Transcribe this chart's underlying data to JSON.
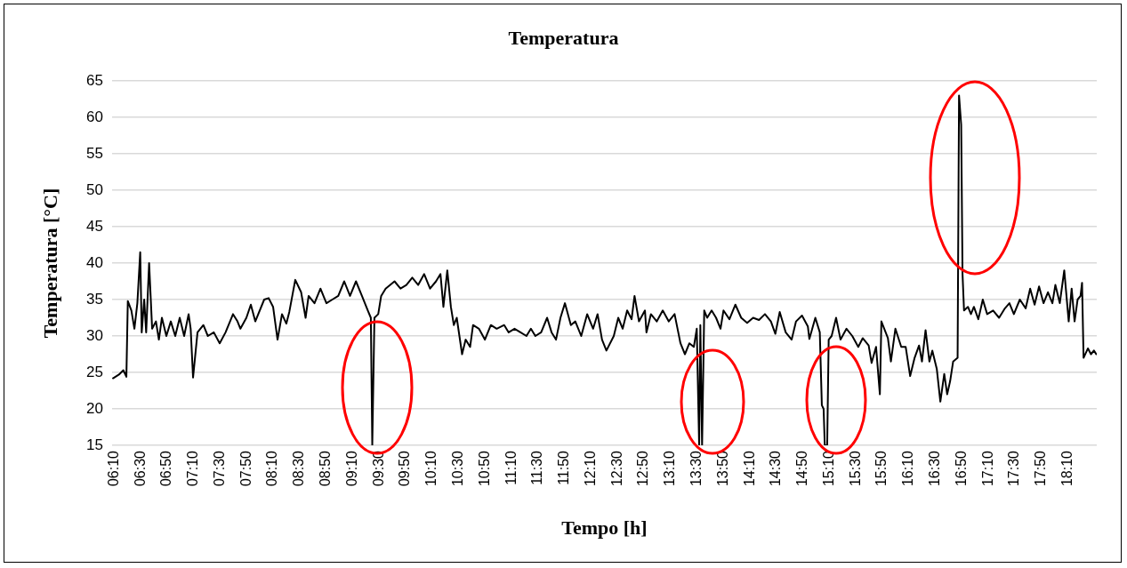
{
  "chart_data": {
    "type": "line",
    "title": "Temperatura",
    "xlabel": "Tempo [h]",
    "ylabel": "Temperatura [°C]",
    "x": [
      6.152,
      6.226,
      6.282,
      6.32,
      6.338,
      6.383,
      6.421,
      6.458,
      6.494,
      6.513,
      6.544,
      6.569,
      6.606,
      6.644,
      6.692,
      6.729,
      6.767,
      6.823,
      6.879,
      6.935,
      6.991,
      7.047,
      7.103,
      7.129,
      7.159,
      7.215,
      7.289,
      7.345,
      7.42,
      7.494,
      7.568,
      7.662,
      7.718,
      7.755,
      7.83,
      7.886,
      7.942,
      8.054,
      8.11,
      8.166,
      8.222,
      8.278,
      8.333,
      8.37,
      8.445,
      8.519,
      8.575,
      8.613,
      8.687,
      8.762,
      8.837,
      8.911,
      8.986,
      9.061,
      9.134,
      9.209,
      9.284,
      9.358,
      9.396,
      9.414,
      9.441,
      9.489,
      9.526,
      9.582,
      9.694,
      9.769,
      9.843,
      9.917,
      9.992,
      10.067,
      10.141,
      10.216,
      10.272,
      10.309,
      10.358,
      10.403,
      10.44,
      10.477,
      10.544,
      10.589,
      10.645,
      10.682,
      10.756,
      10.831,
      10.906,
      10.98,
      11.074,
      11.13,
      11.204,
      11.279,
      11.354,
      11.41,
      11.466,
      11.539,
      11.614,
      11.67,
      11.726,
      11.782,
      11.838,
      11.913,
      11.969,
      12.043,
      12.118,
      12.193,
      12.249,
      12.305,
      12.36,
      12.453,
      12.509,
      12.565,
      12.621,
      12.677,
      12.714,
      12.77,
      12.845,
      12.864,
      12.92,
      12.994,
      13.069,
      13.144,
      13.218,
      13.292,
      13.348,
      13.404,
      13.46,
      13.497,
      13.527,
      13.542,
      13.564,
      13.591,
      13.628,
      13.684,
      13.74,
      13.796,
      13.833,
      13.908,
      13.983,
      14.056,
      14.131,
      14.206,
      14.28,
      14.355,
      14.43,
      14.486,
      14.541,
      14.616,
      14.691,
      14.746,
      14.821,
      14.895,
      14.914,
      14.989,
      15.045,
      15.071,
      15.093,
      15.108,
      15.138,
      15.157,
      15.194,
      15.25,
      15.306,
      15.381,
      15.454,
      15.529,
      15.585,
      15.66,
      15.697,
      15.753,
      15.801,
      15.82,
      15.902,
      15.94,
      15.996,
      16.07,
      16.126,
      16.182,
      16.238,
      16.294,
      16.331,
      16.376,
      16.424,
      16.461,
      16.517,
      16.562,
      16.611,
      16.648,
      16.685,
      16.723,
      16.779,
      16.797,
      16.824,
      16.841,
      16.86,
      16.909,
      16.947,
      16.984,
      17.04,
      17.096,
      17.151,
      17.226,
      17.301,
      17.375,
      17.431,
      17.487,
      17.562,
      17.636,
      17.692,
      17.748,
      17.804,
      17.86,
      17.916,
      17.972,
      18.009,
      18.065,
      18.121,
      18.177,
      18.214,
      18.251,
      18.289,
      18.326,
      18.345,
      18.364,
      18.419,
      18.457,
      18.494,
      18.524
    ],
    "series": [
      {
        "color": "#000000",
        "values": [
          24.2,
          24.7,
          25.3,
          24.4,
          34.8,
          33.5,
          31,
          34.5,
          41.5,
          30.5,
          35,
          30.5,
          40,
          31,
          32,
          29.5,
          32.5,
          30,
          32,
          30,
          32.5,
          30,
          33,
          31,
          24.3,
          30.5,
          31.5,
          30,
          30.5,
          29,
          30.5,
          33,
          32,
          31,
          32.5,
          34.3,
          32,
          35,
          35.2,
          34,
          29.5,
          33,
          31.7,
          33.3,
          37.7,
          36,
          32.5,
          35.5,
          34.5,
          36.5,
          34.5,
          35,
          35.5,
          37.5,
          35.5,
          37.5,
          35.5,
          33.5,
          32.5,
          15,
          32.5,
          33,
          35.5,
          36.5,
          37.5,
          36.5,
          37,
          38,
          37,
          38.5,
          36.5,
          37.5,
          38.5,
          34,
          39,
          34,
          31.5,
          32.5,
          27.5,
          29.5,
          28.5,
          31.5,
          31,
          29.5,
          31.5,
          31,
          31.5,
          30.5,
          31,
          30.5,
          30,
          31,
          30,
          30.5,
          32.5,
          30.5,
          29.5,
          32.5,
          34.5,
          31.5,
          32,
          30,
          33,
          31,
          33,
          29.5,
          28,
          30,
          32.5,
          31,
          33.5,
          32.3,
          35.5,
          32,
          33.5,
          30.5,
          33,
          32,
          33.5,
          32,
          33,
          29,
          27.5,
          29,
          28.5,
          31,
          15,
          31.5,
          15,
          33.5,
          32.5,
          33.5,
          32.5,
          31,
          33.5,
          32.3,
          34.3,
          32.5,
          31.8,
          32.5,
          32.2,
          33,
          32,
          30.3,
          33.3,
          30.5,
          29.5,
          32,
          32.8,
          31.3,
          29.6,
          32.5,
          30.5,
          20.5,
          20,
          15,
          15,
          29.5,
          30,
          32.5,
          29.5,
          31,
          30,
          28.5,
          29.7,
          28.7,
          26.3,
          28.5,
          22,
          32,
          29.7,
          26.5,
          31,
          28.5,
          28.5,
          24.5,
          27,
          28.7,
          26.5,
          30.8,
          26.5,
          28,
          25.5,
          21,
          24.8,
          22,
          23.8,
          26.5,
          27,
          63,
          59,
          38.5,
          33.5,
          34,
          33,
          34,
          32.3,
          35,
          33,
          33.5,
          32.5,
          33.8,
          34.5,
          33,
          35,
          33.8,
          36.5,
          34.3,
          36.8,
          34.5,
          36,
          34.5,
          37,
          34.5,
          39,
          32,
          36.5,
          32,
          35,
          35.5,
          37.3,
          27,
          28.3,
          27.5,
          28,
          27.5
        ]
      }
    ],
    "xlim": [
      6.14,
      18.53
    ],
    "ylim": [
      15,
      65
    ],
    "xticks": [
      {
        "value": 6.1667,
        "label": "06:10"
      },
      {
        "value": 6.5,
        "label": "06:30"
      },
      {
        "value": 6.8333,
        "label": "06:50"
      },
      {
        "value": 7.1667,
        "label": "07:10"
      },
      {
        "value": 7.5,
        "label": "07:30"
      },
      {
        "value": 7.8333,
        "label": "07:50"
      },
      {
        "value": 8.1667,
        "label": "08:10"
      },
      {
        "value": 8.5,
        "label": "08:30"
      },
      {
        "value": 8.8333,
        "label": "08:50"
      },
      {
        "value": 9.1667,
        "label": "09:10"
      },
      {
        "value": 9.5,
        "label": "09:30"
      },
      {
        "value": 9.8333,
        "label": "09:50"
      },
      {
        "value": 10.1667,
        "label": "10:10"
      },
      {
        "value": 10.5,
        "label": "10:30"
      },
      {
        "value": 10.8333,
        "label": "10:50"
      },
      {
        "value": 11.1667,
        "label": "11:10"
      },
      {
        "value": 11.5,
        "label": "11:30"
      },
      {
        "value": 11.8333,
        "label": "11:50"
      },
      {
        "value": 12.1667,
        "label": "12:10"
      },
      {
        "value": 12.5,
        "label": "12:30"
      },
      {
        "value": 12.8333,
        "label": "12:50"
      },
      {
        "value": 13.1667,
        "label": "13:10"
      },
      {
        "value": 13.5,
        "label": "13:30"
      },
      {
        "value": 13.8333,
        "label": "13:50"
      },
      {
        "value": 14.1667,
        "label": "14:10"
      },
      {
        "value": 14.5,
        "label": "14:30"
      },
      {
        "value": 14.8333,
        "label": "14:50"
      },
      {
        "value": 15.1667,
        "label": "15:10"
      },
      {
        "value": 15.5,
        "label": "15:30"
      },
      {
        "value": 15.8333,
        "label": "15:50"
      },
      {
        "value": 16.1667,
        "label": "16:10"
      },
      {
        "value": 16.5,
        "label": "16:30"
      },
      {
        "value": 16.8333,
        "label": "16:50"
      },
      {
        "value": 17.1667,
        "label": "17:10"
      },
      {
        "value": 17.5,
        "label": "17:30"
      },
      {
        "value": 17.8333,
        "label": "17:50"
      },
      {
        "value": 18.1667,
        "label": "18:10"
      }
    ],
    "yticks": [
      15,
      20,
      25,
      30,
      35,
      40,
      45,
      50,
      55,
      60,
      65
    ],
    "grid": "y",
    "marker": "none",
    "line_style": "solid"
  }
}
